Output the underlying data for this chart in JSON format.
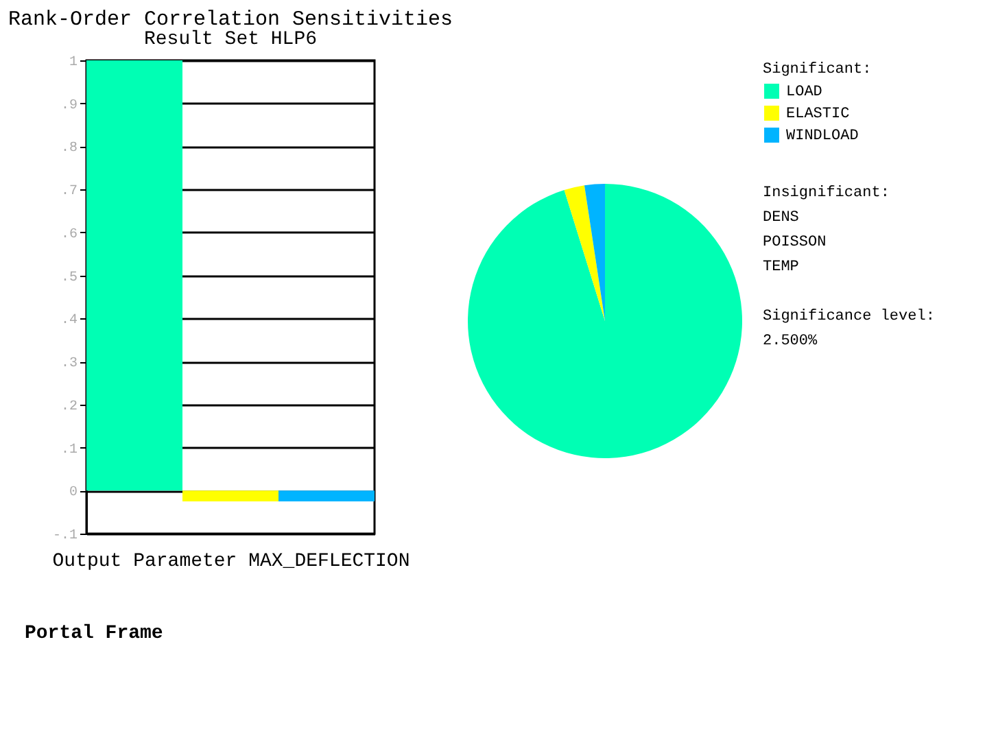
{
  "chart_data": [
    {
      "type": "bar",
      "title": "Rank-Order Correlation Sensitivities",
      "subtitle": "Result Set HLP6",
      "xlabel": "Output Parameter MAX_DEFLECTION",
      "categories": [
        null,
        null,
        null
      ],
      "values": [
        1.0,
        -0.025,
        -0.025
      ],
      "colors": [
        "#00ffb4",
        "#ffff00",
        "#00b4ff"
      ],
      "ylim": [
        -0.1,
        1
      ],
      "yticks": [
        {
          "value": -0.1,
          "label": "-.1"
        },
        0,
        {
          "value": 0.1,
          "label": ".1"
        },
        {
          "value": 0.2,
          "label": ".2"
        },
        {
          "value": 0.3,
          "label": ".3"
        },
        {
          "value": 0.4,
          "label": ".4"
        },
        {
          "value": 0.5,
          "label": ".5"
        },
        {
          "value": 0.6,
          "label": ".6"
        },
        {
          "value": 0.7,
          "label": ".7"
        },
        {
          "value": 0.8,
          "label": ".8"
        },
        {
          "value": 0.9,
          "label": ".9"
        },
        1
      ],
      "grid": "y",
      "annotations": [
        "Portal Frame"
      ]
    },
    {
      "type": "pie",
      "categories": [
        "LOAD",
        "ELASTIC",
        "WINDLOAD"
      ],
      "values": [
        95.2,
        2.4,
        2.4
      ],
      "colors": [
        "#00ffb4",
        "#ffff00",
        "#00b4ff"
      ],
      "legend_title": "Significant:",
      "legend": "right",
      "annotations": [
        "Insignificant:\nDENS\nPOISSON\nTEMP",
        "Significance level:\n2.500%"
      ]
    }
  ]
}
